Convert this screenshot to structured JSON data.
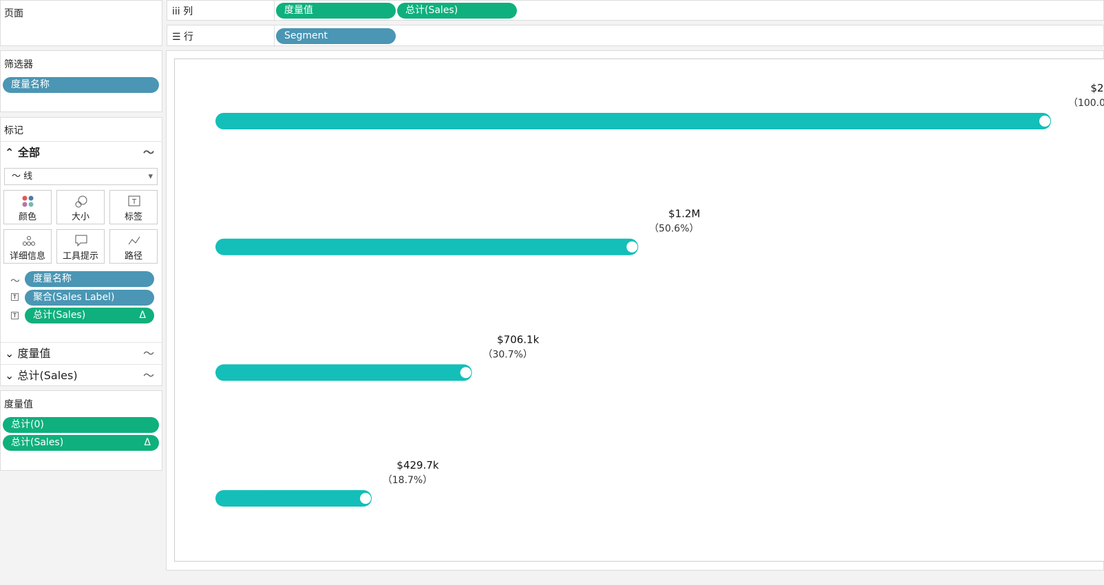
{
  "shelves": {
    "pages": "页面",
    "columns_label": "列",
    "columns": [
      "度量值",
      "总计(Sales)"
    ],
    "rows_label": "行",
    "rows": [
      "Segment"
    ]
  },
  "filters": {
    "title": "筛选器",
    "pills": [
      "度量名称"
    ]
  },
  "marks": {
    "title": "标记",
    "all": "全部",
    "mark_type": "线",
    "buttons": [
      "颜色",
      "大小",
      "标签",
      "详细信息",
      "工具提示",
      "路径"
    ],
    "pills": [
      "度量名称",
      "聚合(Sales Label)",
      "总计(Sales)"
    ],
    "delta": "Δ",
    "sections": [
      "度量值",
      "总计(Sales)"
    ]
  },
  "measure_values": {
    "title": "度量值",
    "pills": [
      "总计(0)",
      "总计(Sales)"
    ]
  },
  "chart_data": {
    "type": "bar",
    "color": "#13bfb8",
    "xlim": [
      0,
      100
    ],
    "values": [
      100,
      50.6,
      30.7,
      18.7
    ],
    "value_labels": [
      "（100.0",
      "（50.6%）",
      "（30.7%）",
      "（18.7%）"
    ],
    "amount_labels": [
      "$2",
      "$1.2M",
      "$706.1k",
      "$429.7k"
    ]
  }
}
